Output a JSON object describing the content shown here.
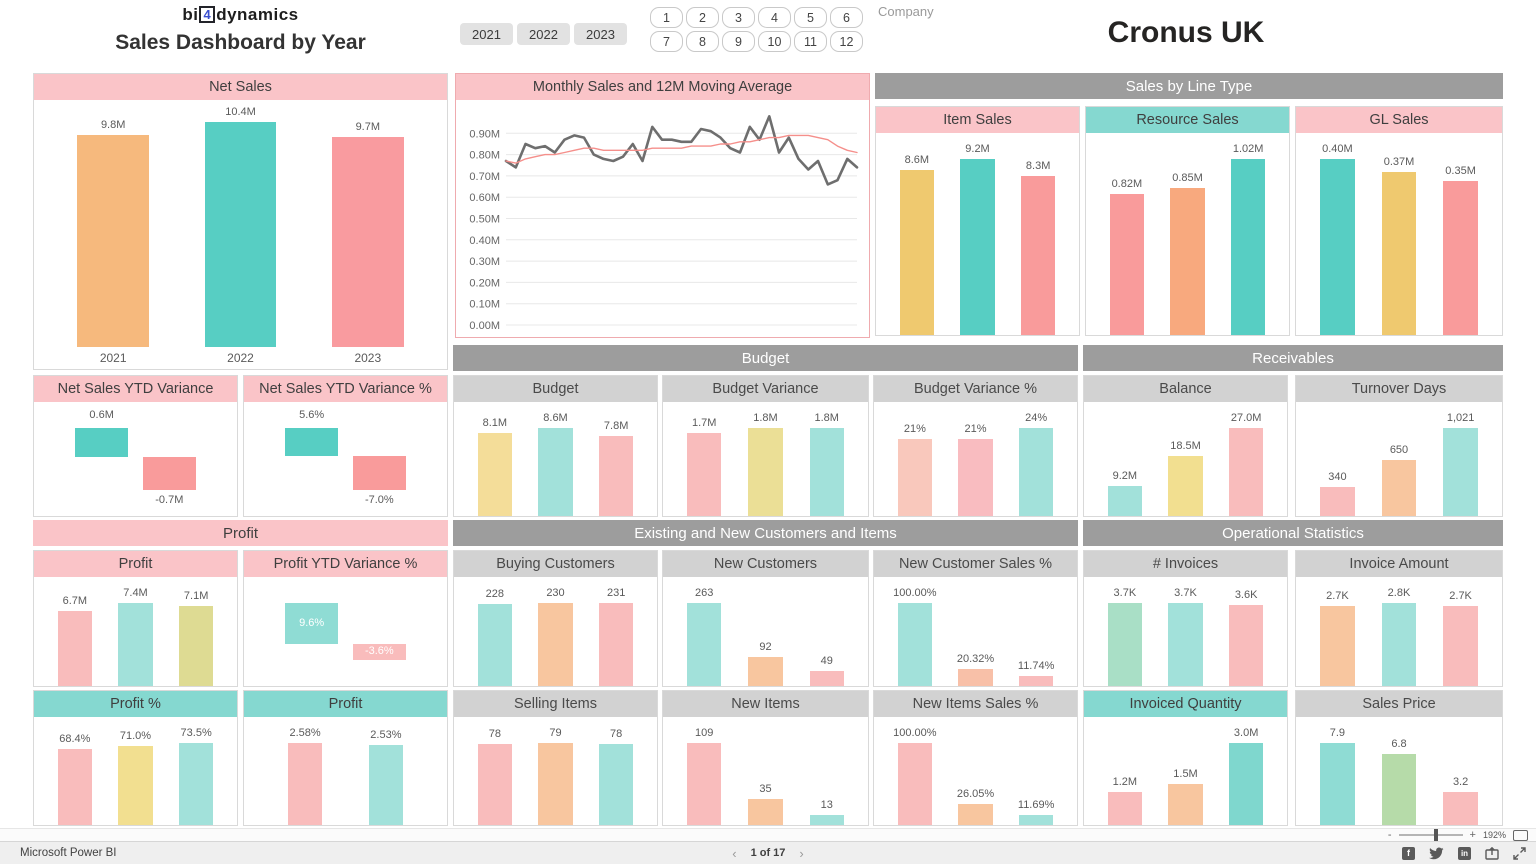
{
  "header": {
    "logo_pre": "bi",
    "logo_num": "4",
    "logo_post": "dynamics",
    "title": "Sales Dashboard by Year",
    "years": [
      "2021",
      "2022",
      "2023"
    ],
    "months": [
      "1",
      "2",
      "3",
      "4",
      "5",
      "6",
      "7",
      "8",
      "9",
      "10",
      "11",
      "12"
    ],
    "company_label": "Company",
    "company_value": "Cronus UK"
  },
  "sections": {
    "sales_by_line_type": "Sales by Line Type",
    "budget": "Budget",
    "receivables": "Receivables",
    "profit": "Profit",
    "existing_new": "Existing and New Customers and Items",
    "operational": "Operational Statistics"
  },
  "panels": {
    "net_sales": {
      "title": "Net Sales",
      "type": "bar",
      "show_categories": true,
      "categories": [
        "2021",
        "2022",
        "2023"
      ],
      "labels": [
        "9.8M",
        "10.4M",
        "9.7M"
      ],
      "values": [
        9.8,
        10.4,
        9.7
      ],
      "colors": [
        "#F6B97D",
        "#57CEC3",
        "#F99B9F"
      ]
    },
    "monthly": {
      "title": "Monthly Sales and 12M Moving Average",
      "type": "line",
      "y_max": 1.0,
      "y_ticks": [
        "0.90M",
        "0.80M",
        "0.70M",
        "0.60M",
        "0.50M",
        "0.40M",
        "0.30M",
        "0.20M",
        "0.10M",
        "0.00M"
      ],
      "series": [
        {
          "name": "Monthly Sales",
          "color": "#6e6e6e",
          "width": 2.6,
          "values": [
            0.77,
            0.74,
            0.85,
            0.83,
            0.84,
            0.81,
            0.87,
            0.89,
            0.88,
            0.8,
            0.78,
            0.77,
            0.79,
            0.85,
            0.77,
            0.93,
            0.87,
            0.87,
            0.86,
            0.86,
            0.92,
            0.91,
            0.88,
            0.83,
            0.81,
            0.93,
            0.87,
            0.98,
            0.81,
            0.88,
            0.78,
            0.73,
            0.77,
            0.66,
            0.68,
            0.78,
            0.74
          ]
        },
        {
          "name": "12M Moving Average",
          "color": "#f58f8b",
          "width": 1.4,
          "values": [
            0.77,
            0.76,
            0.78,
            0.79,
            0.8,
            0.8,
            0.81,
            0.82,
            0.83,
            0.83,
            0.82,
            0.82,
            0.82,
            0.82,
            0.82,
            0.83,
            0.83,
            0.83,
            0.83,
            0.84,
            0.84,
            0.84,
            0.85,
            0.85,
            0.86,
            0.86,
            0.87,
            0.88,
            0.88,
            0.89,
            0.89,
            0.89,
            0.88,
            0.87,
            0.84,
            0.82,
            0.81
          ]
        }
      ]
    },
    "item_sales": {
      "title": "Item Sales",
      "type": "bar",
      "labels": [
        "8.6M",
        "9.2M",
        "8.3M"
      ],
      "values": [
        8.6,
        9.2,
        8.3
      ],
      "colors": [
        "#EFC96F",
        "#57CEC3",
        "#F99B9B"
      ]
    },
    "resource_sales": {
      "title": "Resource Sales",
      "type": "bar",
      "labels": [
        "0.82M",
        "0.85M",
        "1.02M"
      ],
      "values": [
        0.82,
        0.85,
        1.02
      ],
      "colors": [
        "#F99B9B",
        "#F8A97E",
        "#57CEC3"
      ]
    },
    "gl_sales": {
      "title": "GL Sales",
      "type": "bar",
      "labels": [
        "0.40M",
        "0.37M",
        "0.35M"
      ],
      "values": [
        0.4,
        0.37,
        0.35
      ],
      "colors": [
        "#57CEC3",
        "#EFC96F",
        "#F99B9B"
      ]
    },
    "net_sales_ytd_var": {
      "title": "Net Sales YTD Variance",
      "type": "variance",
      "inside": false,
      "labels": [
        "0.6M",
        "-0.7M"
      ],
      "values": [
        0.6,
        -0.7
      ],
      "colors": [
        "#57CEC3",
        "#F99B9B"
      ]
    },
    "net_sales_ytd_var_pct": {
      "title": "Net Sales YTD Variance %",
      "type": "variance",
      "inside": false,
      "labels": [
        "5.6%",
        "-7.0%"
      ],
      "values": [
        5.6,
        -7.0
      ],
      "colors": [
        "#57CEC3",
        "#F99B9B"
      ]
    },
    "budget": {
      "title": "Budget",
      "type": "bar",
      "labels": [
        "8.1M",
        "8.6M",
        "7.8M"
      ],
      "values": [
        8.1,
        8.6,
        7.8
      ],
      "colors": [
        "#F4DD99",
        "#A2E1DA",
        "#F9BCBC"
      ]
    },
    "budget_variance": {
      "title": "Budget Variance",
      "type": "bar",
      "labels": [
        "1.7M",
        "1.8M",
        "1.8M"
      ],
      "values": [
        1.7,
        1.8,
        1.8
      ],
      "colors": [
        "#F9BCBC",
        "#EBDF96",
        "#A2E1DA"
      ]
    },
    "budget_variance_pct": {
      "title": "Budget Variance %",
      "type": "bar",
      "labels": [
        "21%",
        "21%",
        "24%"
      ],
      "values": [
        21,
        21,
        24
      ],
      "colors": [
        "#F9C8BC",
        "#F9BCC0",
        "#A2E1DA"
      ]
    },
    "balance": {
      "title": "Balance",
      "type": "bar",
      "labels": [
        "9.2M",
        "18.5M",
        "27.0M"
      ],
      "values": [
        9.2,
        18.5,
        27.0
      ],
      "colors": [
        "#A2E1DA",
        "#F2DF90",
        "#F9BCBC"
      ]
    },
    "turnover_days": {
      "title": "Turnover Days",
      "type": "bar",
      "labels": [
        "340",
        "650",
        "1,021"
      ],
      "values": [
        340,
        650,
        1021
      ],
      "colors": [
        "#F9BCBC",
        "#F8C69F",
        "#A2E1DA"
      ]
    },
    "profit_detail": {
      "title": "Profit",
      "type": "bar",
      "labels": [
        "6.7M",
        "7.4M",
        "7.1M"
      ],
      "values": [
        6.7,
        7.4,
        7.1
      ],
      "colors": [
        "#F9BCBC",
        "#A2E1DA",
        "#DEDB93"
      ]
    },
    "profit_ytd_var_pct": {
      "title": "Profit YTD Variance %",
      "type": "variance",
      "inside": true,
      "labels": [
        "9.6%",
        "-3.6%"
      ],
      "values": [
        9.6,
        -3.6
      ],
      "colors": [
        "#8FDCD4",
        "#F9BCBC"
      ]
    },
    "buying_customers": {
      "title": "Buying Customers",
      "type": "bar",
      "labels": [
        "228",
        "230",
        "231"
      ],
      "values": [
        228,
        230,
        231
      ],
      "colors": [
        "#A2E1DA",
        "#F8C69F",
        "#F9BCBC"
      ]
    },
    "new_customers": {
      "title": "New Customers",
      "type": "bar",
      "labels": [
        "263",
        "92",
        "49"
      ],
      "values": [
        263,
        92,
        49
      ],
      "colors": [
        "#A2E1DA",
        "#F8C69F",
        "#F9BCBC"
      ]
    },
    "new_customer_sales_pct": {
      "title": "New Customer Sales %",
      "type": "bar",
      "labels": [
        "100.00%",
        "20.32%",
        "11.74%"
      ],
      "values": [
        100,
        20.32,
        11.74
      ],
      "colors": [
        "#A2E1DA",
        "#F8C0A8",
        "#F9BCBC"
      ]
    },
    "invoices": {
      "title": "# Invoices",
      "type": "bar",
      "labels": [
        "3.7K",
        "3.7K",
        "3.6K"
      ],
      "values": [
        3.7,
        3.7,
        3.6
      ],
      "colors": [
        "#A9DFC6",
        "#A2E1DA",
        "#F9BCBC"
      ]
    },
    "invoice_amount": {
      "title": "Invoice Amount",
      "type": "bar",
      "labels": [
        "2.7K",
        "2.8K",
        "2.7K"
      ],
      "values": [
        2.7,
        2.8,
        2.7
      ],
      "colors": [
        "#F8C69F",
        "#A2E1DA",
        "#F9BCBC"
      ]
    },
    "profit_pct": {
      "title": "Profit %",
      "type": "bar",
      "labels": [
        "68.4%",
        "71.0%",
        "73.5%"
      ],
      "values": [
        68.4,
        71.0,
        73.5
      ],
      "colors": [
        "#F9BCBC",
        "#F2DF90",
        "#A2E1DA"
      ]
    },
    "profit_bottom": {
      "title": "Profit",
      "type": "bar",
      "labels": [
        "2.58%",
        "2.53%"
      ],
      "values": [
        2.58,
        2.53
      ],
      "colors": [
        "#F9BCBC",
        "#A2E1DA"
      ]
    },
    "selling_items": {
      "title": "Selling Items",
      "type": "bar",
      "labels": [
        "78",
        "79",
        "78"
      ],
      "values": [
        78,
        79,
        78
      ],
      "colors": [
        "#F9BCBC",
        "#F8C69F",
        "#A2E1DA"
      ]
    },
    "new_items": {
      "title": "New Items",
      "type": "bar",
      "labels": [
        "109",
        "35",
        "13"
      ],
      "values": [
        109,
        35,
        13
      ],
      "colors": [
        "#F9BCBC",
        "#F8C69F",
        "#A2E1DA"
      ]
    },
    "new_items_sales_pct": {
      "title": "New Items Sales %",
      "type": "bar",
      "labels": [
        "100.00%",
        "26.05%",
        "11.69%"
      ],
      "values": [
        100,
        26.05,
        11.69
      ],
      "colors": [
        "#F9BCBC",
        "#F8C69F",
        "#A2E1DA"
      ]
    },
    "invoiced_quantity": {
      "title": "Invoiced Quantity",
      "type": "bar",
      "labels": [
        "1.2M",
        "1.5M",
        "3.0M"
      ],
      "values": [
        1.2,
        1.5,
        3.0
      ],
      "colors": [
        "#F9BCBC",
        "#F8C69F",
        "#7FD7CE"
      ]
    },
    "sales_price": {
      "title": "Sales Price",
      "type": "bar",
      "labels": [
        "7.9",
        "6.8",
        "3.2"
      ],
      "values": [
        7.9,
        6.8,
        3.2
      ],
      "colors": [
        "#8FDCD4",
        "#B6DBA9",
        "#F9BCBC"
      ]
    }
  },
  "statusbar": {
    "brand": "Microsoft Power BI",
    "pager_prev": "‹",
    "pager_label": "1 of 17",
    "pager_next": "›",
    "zoom_minus": "-",
    "zoom_plus": "+",
    "zoom_value": "192%",
    "icons": [
      "facebook-icon",
      "twitter-icon",
      "linkedin-icon",
      "share-icon",
      "fullscreen-icon"
    ]
  }
}
